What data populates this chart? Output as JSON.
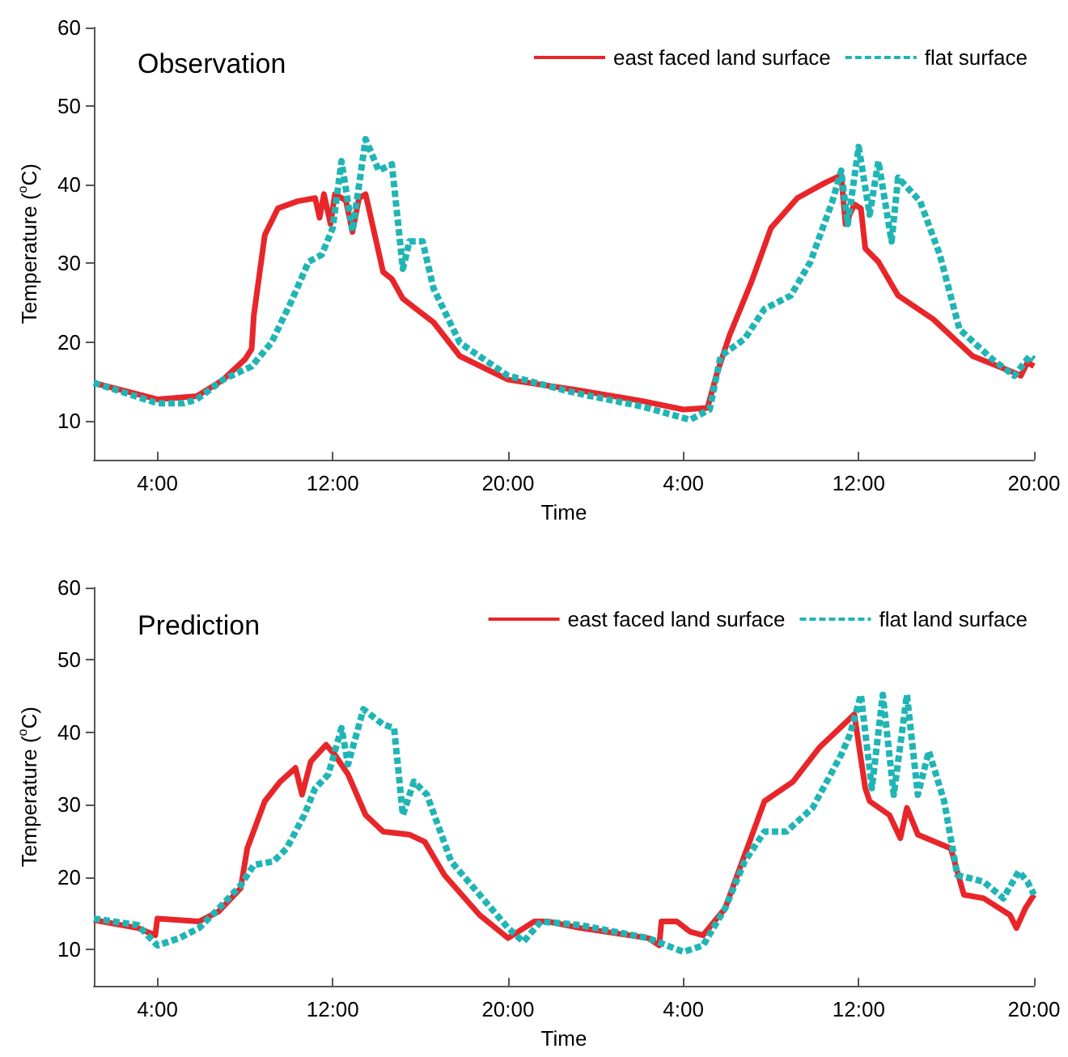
{
  "chart_data": [
    {
      "type": "line",
      "title": "Observation",
      "xlabel": "Time",
      "ylabel": "Temperature ($^{o}$C)",
      "xlim": [
        "--01-01T01:06",
        "--01-02T20:00"
      ],
      "xticks": [
        {
          "value": "--01-01T04:00",
          "label": "4:00"
        },
        {
          "value": "--01-01T12:00",
          "label": "12:00"
        },
        {
          "value": "--01-01T20:00",
          "label": "20:00"
        },
        {
          "value": "--01-02T04:00",
          "label": "4:00"
        },
        {
          "value": "--01-02T12:00",
          "label": "12:00"
        },
        {
          "value": "--01-02T20:00",
          "label": "20:00"
        }
      ],
      "ylim": [
        5,
        60
      ],
      "yticks": [
        10,
        20,
        30,
        40,
        50,
        60
      ],
      "grid": false,
      "legend": "top right",
      "marker": "none",
      "series": [
        {
          "name": "east faced land surface",
          "color": "#e8262a",
          "line_style": "solid",
          "x": [
            "--01-01T01:06",
            "--01-01T04:00",
            "--01-01T05:48",
            "--01-01T07:00",
            "--01-01T08:00",
            "--01-01T08:18",
            "--01-01T08:24",
            "--01-01T08:54",
            "--01-01T09:30",
            "--01-01T10:24",
            "--01-01T11:12",
            "--01-01T11:24",
            "--01-01T11:36",
            "--01-01T11:54",
            "--01-01T12:06",
            "--01-01T12:36",
            "--01-01T12:54",
            "--01-01T13:12",
            "--01-01T13:30",
            "--01-01T14:18",
            "--01-01T14:42",
            "--01-01T15:12",
            "--01-01T16:36",
            "--01-01T17:48",
            "--01-01T20:00",
            "--01-01T23:06",
            "--01-02T02:06",
            "--01-02T04:00",
            "--01-02T05:06",
            "--01-02T05:30",
            "--01-02T06:06",
            "--01-02T07:06",
            "--01-02T08:00",
            "--01-02T09:12",
            "--01-02T10:30",
            "--01-02T11:12",
            "--01-02T11:24",
            "--01-02T11:48",
            "--01-02T12:06",
            "--01-02T12:18",
            "--01-02T12:54",
            "--01-02T13:48",
            "--01-02T15:24",
            "--01-02T17:12",
            "--01-02T19:06",
            "--01-02T19:24",
            "--01-02T19:42",
            "--01-02T20:00"
          ],
          "values": [
            14.8,
            12.7,
            13.1,
            15.2,
            17.8,
            19.1,
            23.4,
            33.6,
            37,
            37.9,
            38.3,
            35.8,
            38.8,
            35,
            38.8,
            38,
            34,
            38.3,
            38.8,
            28.9,
            28,
            25.5,
            22.5,
            18.2,
            15.2,
            13.9,
            12.5,
            11.4,
            11.6,
            15.7,
            20.8,
            27.6,
            34.5,
            38.3,
            40.3,
            41.2,
            35,
            37.5,
            37,
            31.9,
            30.2,
            25.9,
            22.9,
            18.2,
            16.1,
            15.7,
            17.4,
            16.9
          ]
        },
        {
          "name": "flat surface",
          "color": "#20b5b5",
          "line_style": "dashed",
          "x": [
            "--01-01T01:06",
            "--01-01T04:00",
            "--01-01T05:12",
            "--01-01T05:48",
            "--01-01T07:00",
            "--01-01T08:18",
            "--01-01T09:12",
            "--01-01T10:06",
            "--01-01T10:54",
            "--01-01T11:30",
            "--01-01T12:00",
            "--01-01T12:24",
            "--01-01T12:54",
            "--01-01T13:30",
            "--01-01T14:06",
            "--01-01T14:42",
            "--01-01T15:12",
            "--01-01T15:30",
            "--01-01T16:06",
            "--01-01T16:36",
            "--01-01T17:48",
            "--01-01T20:00",
            "--01-01T23:06",
            "--01-02T02:06",
            "--01-02T04:18",
            "--01-02T05:12",
            "--01-02T05:42",
            "--01-02T06:48",
            "--01-02T07:42",
            "--01-02T08:54",
            "--01-02T09:48",
            "--01-02T10:48",
            "--01-02T11:12",
            "--01-02T11:30",
            "--01-02T12:00",
            "--01-02T12:30",
            "--01-02T12:54",
            "--01-02T13:30",
            "--01-02T13:48",
            "--01-02T14:48",
            "--01-02T15:42",
            "--01-02T16:36",
            "--01-02T18:06",
            "--01-02T19:06",
            "--01-02T19:48",
            "--01-02T20:00"
          ],
          "values": [
            14.8,
            12.2,
            12.2,
            12.7,
            15.2,
            16.9,
            19.9,
            25.1,
            30.2,
            31.1,
            34.5,
            43,
            34.1,
            45.8,
            41.8,
            42.6,
            29.3,
            32.8,
            32.8,
            26.8,
            19.9,
            15.7,
            13.5,
            11.8,
            10.1,
            11.4,
            18.2,
            20.4,
            24.2,
            25.9,
            30.2,
            37.9,
            41.8,
            35,
            44.8,
            36.2,
            43,
            32.8,
            40.9,
            37.9,
            31.1,
            21.6,
            17.8,
            15.7,
            18.2,
            17.8
          ]
        }
      ]
    },
    {
      "type": "line",
      "title": "Prediction",
      "xlabel": "Time",
      "ylabel": "Temperature ($^{o}$C)",
      "xlim": [
        "--01-01T01:06",
        "--01-02T20:00"
      ],
      "xticks": [
        {
          "value": "--01-01T04:00",
          "label": "4:00"
        },
        {
          "value": "--01-01T12:00",
          "label": "12:00"
        },
        {
          "value": "--01-01T20:00",
          "label": "20:00"
        },
        {
          "value": "--01-02T04:00",
          "label": "4:00"
        },
        {
          "value": "--01-02T12:00",
          "label": "12:00"
        },
        {
          "value": "--01-02T20:00",
          "label": "20:00"
        }
      ],
      "ylim": [
        5,
        60
      ],
      "yticks": [
        10,
        20,
        30,
        40,
        50,
        60
      ],
      "grid": false,
      "legend": "top right",
      "marker": "none",
      "series": [
        {
          "name": "east faced land surface",
          "color": "#e8262a",
          "line_style": "solid",
          "x": [
            "--01-01T01:06",
            "--01-01T03:06",
            "--01-01T03:54",
            "--01-01T04:00",
            "--01-01T05:54",
            "--01-01T06:48",
            "--01-01T07:48",
            "--01-01T08:06",
            "--01-01T08:54",
            "--01-01T09:36",
            "--01-01T10:18",
            "--01-01T10:36",
            "--01-01T11:00",
            "--01-01T11:42",
            "--01-01T12:06",
            "--01-01T12:42",
            "--01-01T13:30",
            "--01-01T14:18",
            "--01-01T15:30",
            "--01-01T16:12",
            "--01-01T17:06",
            "--01-01T18:42",
            "--01-01T20:00",
            "--01-01T21:12",
            "--01-01T21:48",
            "--01-01T23:18",
            "--01-02T02:24",
            "--01-02T02:54",
            "--01-02T03:00",
            "--01-02T03:42",
            "--01-02T04:18",
            "--01-02T04:54",
            "--01-02T05:54",
            "--01-02T06:48",
            "--01-02T07:42",
            "--01-02T09:00",
            "--01-02T10:12",
            "--01-02T11:48",
            "--01-02T12:18",
            "--01-02T12:30",
            "--01-02T13:24",
            "--01-02T13:54",
            "--01-02T14:12",
            "--01-02T14:42",
            "--01-02T16:12",
            "--01-02T16:48",
            "--01-02T17:42",
            "--01-02T18:54",
            "--01-02T19:12",
            "--01-02T19:36",
            "--01-02T20:00"
          ],
          "values": [
            14.1,
            13,
            12,
            14.3,
            13.9,
            15.3,
            18.5,
            24,
            30.5,
            33.2,
            35.1,
            31.4,
            36,
            38.3,
            36.9,
            34.2,
            28.6,
            26.3,
            25.9,
            24.9,
            20.3,
            14.8,
            11.6,
            13.9,
            13.9,
            13,
            11.6,
            10.6,
            13.9,
            13.9,
            12.5,
            12,
            15.7,
            23.1,
            30.5,
            33.2,
            37.9,
            42.5,
            32.3,
            30.5,
            28.6,
            25.4,
            29.6,
            25.9,
            24,
            17.6,
            17.1,
            14.8,
            13,
            15.7,
            17.6
          ]
        },
        {
          "name": "flat land surface",
          "color": "#20b5b5",
          "line_style": "dashed",
          "x": [
            "--01-01T01:06",
            "--01-01T03:06",
            "--01-01T04:00",
            "--01-01T05:00",
            "--01-01T05:54",
            "--01-01T06:48",
            "--01-01T07:48",
            "--01-01T08:24",
            "--01-01T09:18",
            "--01-01T09:54",
            "--01-01T10:42",
            "--01-01T11:12",
            "--01-01T11:48",
            "--01-01T12:24",
            "--01-01T12:42",
            "--01-01T13:24",
            "--01-01T14:18",
            "--01-01T14:48",
            "--01-01T15:12",
            "--01-01T15:42",
            "--01-01T16:18",
            "--01-01T17:24",
            "--01-01T18:42",
            "--01-01T20:00",
            "--01-01T20:42",
            "--01-01T21:30",
            "--01-01T23:18",
            "--01-02T02:24",
            "--01-02T04:00",
            "--01-02T04:54",
            "--01-02T05:54",
            "--01-02T06:48",
            "--01-02T07:42",
            "--01-02T08:42",
            "--01-02T09:54",
            "--01-02T11:12",
            "--01-02T11:36",
            "--01-02T12:06",
            "--01-02T12:36",
            "--01-02T13:06",
            "--01-02T13:36",
            "--01-02T14:12",
            "--01-02T14:42",
            "--01-02T15:12",
            "--01-02T15:54",
            "--01-02T16:30",
            "--01-02T17:42",
            "--01-02T18:36",
            "--01-02T19:18",
            "--01-02T19:42",
            "--01-02T20:00"
          ],
          "values": [
            14.3,
            13.4,
            10.6,
            11.6,
            13,
            15.7,
            18.9,
            21.7,
            22.2,
            24,
            28.6,
            32.3,
            34.2,
            40.6,
            35.6,
            43.2,
            41.1,
            40.6,
            28.6,
            33.2,
            31.4,
            22.2,
            17.6,
            13,
            11.1,
            13.9,
            13.4,
            11.6,
            9.7,
            10.6,
            15.7,
            22.2,
            26.3,
            26.3,
            29.6,
            36.9,
            39.7,
            45.2,
            32.3,
            45.2,
            31.4,
            45.2,
            31.4,
            37.4,
            30.5,
            20.3,
            19.4,
            17.1,
            20.8,
            19.4,
            17.6
          ]
        }
      ]
    }
  ]
}
